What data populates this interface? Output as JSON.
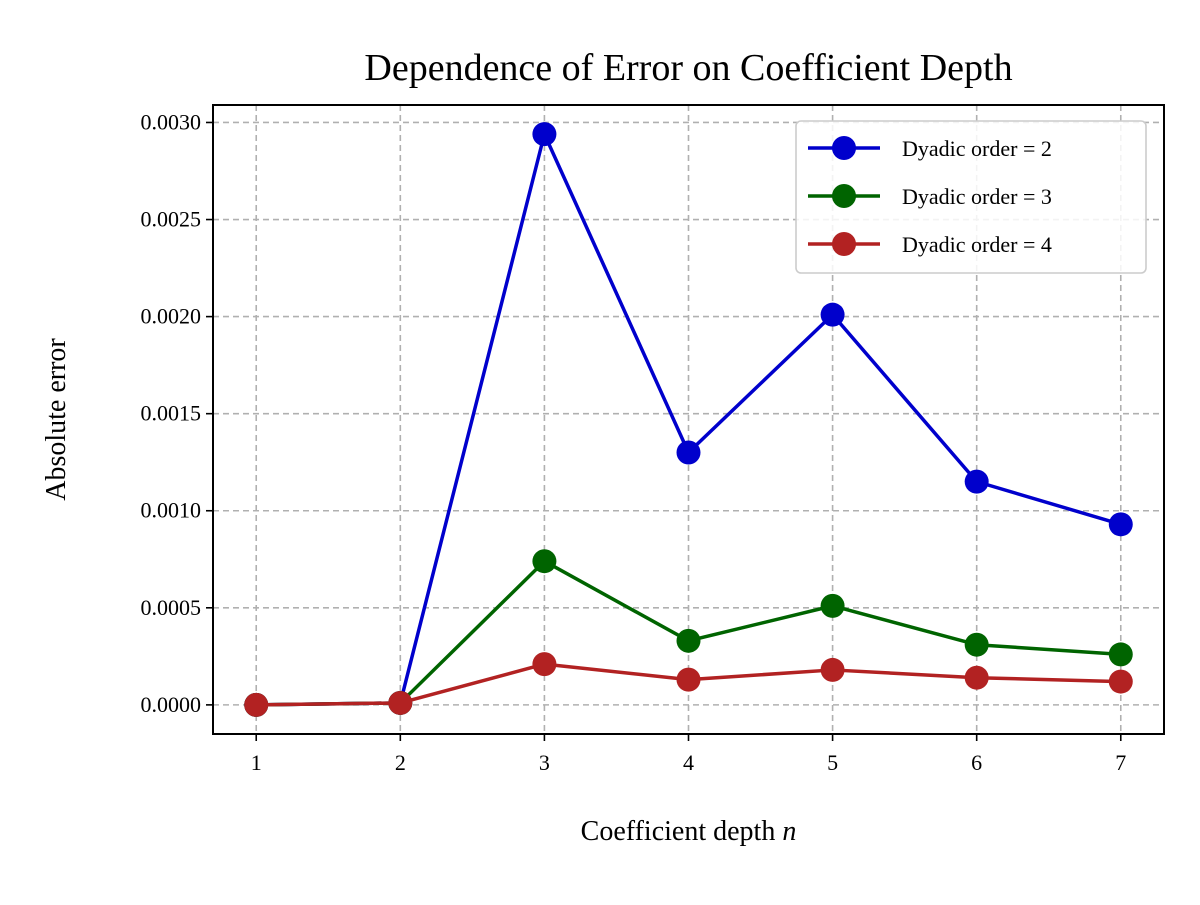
{
  "chart_data": {
    "type": "line",
    "title": "Dependence of Error on Coefficient Depth",
    "xlabel": "Coefficient depth",
    "xlabel_var": "n",
    "ylabel": "Absolute error",
    "x": [
      1,
      2,
      3,
      4,
      5,
      6,
      7
    ],
    "x_tick_labels": [
      "1",
      "2",
      "3",
      "4",
      "5",
      "6",
      "7"
    ],
    "y_ticks": [
      0.0,
      0.0005,
      0.001,
      0.0015,
      0.002,
      0.0025,
      0.003
    ],
    "y_tick_labels": [
      "0.0000",
      "0.0005",
      "0.0010",
      "0.0015",
      "0.0020",
      "0.0025",
      "0.0030"
    ],
    "xlim": [
      0.7,
      7.3
    ],
    "ylim": [
      -0.00015,
      0.00309
    ],
    "grid": true,
    "legend_position": "top-right",
    "series": [
      {
        "name": "Dyadic order = 2",
        "color": "#0000cc",
        "values": [
          0.0,
          1e-05,
          0.00294,
          0.0013,
          0.00201,
          0.00115,
          0.00093
        ]
      },
      {
        "name": "Dyadic order = 3",
        "color": "#006400",
        "values": [
          0.0,
          1e-05,
          0.00074,
          0.00033,
          0.00051,
          0.00031,
          0.00026
        ]
      },
      {
        "name": "Dyadic order = 4",
        "color": "#b22222",
        "values": [
          0.0,
          1e-05,
          0.00021,
          0.00013,
          0.00018,
          0.00014,
          0.00012
        ]
      }
    ]
  }
}
